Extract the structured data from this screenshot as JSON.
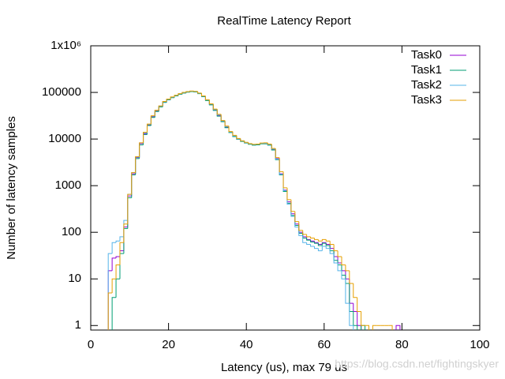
{
  "chart_data": {
    "type": "histep",
    "title": "RealTime Latency Report",
    "x_label": "Latency (us), max 79 us",
    "y_label": "Number of latency samples",
    "watermark": "https://blog.csdn.net/fightingskyer",
    "log_y": true,
    "legend": "top-right",
    "xlim": [
      0,
      100
    ],
    "xticks": [
      0,
      20,
      40,
      60,
      80,
      100
    ],
    "ylim": [
      0.8,
      1000000
    ],
    "yticks": [
      1,
      10,
      100,
      1000,
      10000,
      100000,
      {
        "value": 1000000,
        "label": "1x10⁶"
      }
    ],
    "x": [
      4,
      5,
      6,
      7,
      8,
      9,
      10,
      11,
      12,
      13,
      14,
      15,
      16,
      17,
      18,
      19,
      20,
      21,
      22,
      23,
      24,
      25,
      26,
      27,
      28,
      29,
      30,
      31,
      32,
      33,
      34,
      35,
      36,
      37,
      38,
      39,
      40,
      41,
      42,
      43,
      44,
      45,
      46,
      47,
      48,
      49,
      50,
      51,
      52,
      53,
      54,
      55,
      56,
      57,
      58,
      59,
      60,
      61,
      62,
      63,
      64,
      65,
      66,
      67,
      68,
      69,
      70,
      71,
      72,
      73,
      74,
      75,
      76,
      77,
      78,
      79,
      80
    ],
    "series": [
      {
        "name": "Task0",
        "color": "#9400d3",
        "values": [
          null,
          15,
          28,
          30,
          40,
          130,
          600,
          1800,
          4000,
          8000,
          13000,
          20000,
          30000,
          40000,
          50000,
          62000,
          70000,
          78000,
          85000,
          92000,
          98000,
          102000,
          105000,
          103000,
          95000,
          82000,
          68000,
          55000,
          42000,
          32000,
          24000,
          18000,
          14000,
          11500,
          10000,
          9000,
          8300,
          7800,
          7500,
          7600,
          8000,
          8000,
          7500,
          6000,
          3800,
          1800,
          800,
          450,
          250,
          150,
          100,
          80,
          70,
          65,
          60,
          55,
          60,
          55,
          45,
          30,
          22,
          15,
          10,
          3,
          2,
          1,
          null,
          null,
          null,
          null,
          null,
          null,
          null,
          null,
          null,
          1,
          null
        ]
      },
      {
        "name": "Task1",
        "color": "#009e73",
        "values": [
          null,
          null,
          4,
          10,
          35,
          120,
          550,
          1700,
          3800,
          7500,
          12500,
          19500,
          29000,
          39000,
          49000,
          61000,
          69000,
          77000,
          84000,
          91000,
          97000,
          101000,
          104000,
          102000,
          94000,
          81000,
          67000,
          54000,
          41000,
          31000,
          23500,
          17500,
          13800,
          11300,
          9900,
          8900,
          8200,
          7700,
          7400,
          7500,
          7900,
          7900,
          7400,
          5800,
          3600,
          1700,
          750,
          420,
          230,
          140,
          95,
          75,
          68,
          62,
          58,
          52,
          58,
          52,
          40,
          25,
          20,
          12,
          8,
          2,
          1,
          null,
          1,
          null,
          null,
          null,
          null,
          null,
          null,
          null,
          null,
          null,
          null
        ]
      },
      {
        "name": "Task2",
        "color": "#56b4e9",
        "values": [
          null,
          35,
          60,
          65,
          80,
          180,
          650,
          1900,
          4100,
          8200,
          13500,
          20500,
          31000,
          41000,
          51000,
          63000,
          71000,
          79000,
          86000,
          93000,
          99000,
          103000,
          106000,
          104000,
          96000,
          83000,
          69000,
          56000,
          43000,
          33000,
          24500,
          18500,
          14200,
          11700,
          10100,
          9100,
          8400,
          7900,
          7600,
          7700,
          8100,
          8100,
          7600,
          6100,
          3700,
          1750,
          780,
          400,
          220,
          130,
          85,
          60,
          55,
          50,
          45,
          40,
          50,
          45,
          35,
          22,
          15,
          10,
          3,
          1,
          null,
          null,
          null,
          null,
          null,
          null,
          null,
          null,
          null,
          null,
          null,
          null,
          null
        ]
      },
      {
        "name": "Task3",
        "color": "#e69f00",
        "values": [
          null,
          5,
          10,
          20,
          60,
          150,
          650,
          1900,
          4200,
          8300,
          14000,
          21000,
          31500,
          41500,
          51500,
          64000,
          72000,
          80000,
          87000,
          94000,
          100000,
          104000,
          107000,
          105000,
          97000,
          84000,
          70000,
          57000,
          44000,
          34000,
          25000,
          19000,
          14500,
          12000,
          10300,
          9200,
          8500,
          8000,
          7700,
          7800,
          8200,
          8300,
          7800,
          6300,
          4000,
          2000,
          900,
          500,
          280,
          170,
          110,
          90,
          80,
          75,
          70,
          65,
          70,
          65,
          55,
          40,
          30,
          20,
          15,
          8,
          4,
          2,
          1,
          1,
          null,
          1,
          1,
          1,
          1,
          1,
          null,
          null,
          null
        ]
      }
    ]
  }
}
